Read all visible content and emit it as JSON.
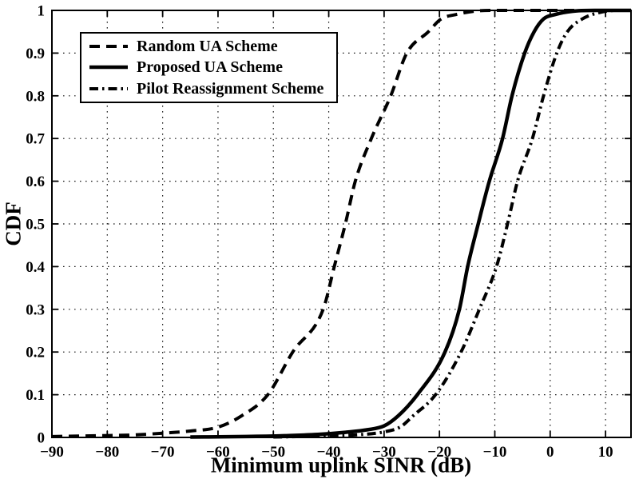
{
  "figure": {
    "background": "#ffffff",
    "ink_color": "#000000"
  },
  "chart_data": {
    "type": "line",
    "title": "",
    "xlabel": "Minimum uplink SINR (dB)",
    "ylabel": "CDF",
    "xlim": [
      -90,
      14.6
    ],
    "ylim": [
      0,
      1
    ],
    "grid": "dotted",
    "legend_position": "top-left",
    "xticks": {
      "values": [
        -90,
        -80,
        -70,
        -60,
        -50,
        -40,
        -30,
        -20,
        -10,
        0,
        10
      ],
      "labels": [
        "−90",
        "−80",
        "−70",
        "−60",
        "−50",
        "−40",
        "−30",
        "−20",
        "−10",
        "0",
        "10"
      ]
    },
    "yticks": {
      "values": [
        0,
        0.1,
        0.2,
        0.3,
        0.4,
        0.5,
        0.6,
        0.7,
        0.8,
        0.9,
        1
      ],
      "labels": [
        "0",
        "0.1",
        "0.2",
        "0.3",
        "0.4",
        "0.5",
        "0.6",
        "0.7",
        "0.8",
        "0.9",
        "1"
      ]
    },
    "series": [
      {
        "name": "Random UA Scheme",
        "line_style": "dashed",
        "color": "#000000",
        "points": [
          [
            -90,
            0.002
          ],
          [
            -82,
            0.004
          ],
          [
            -75,
            0.006
          ],
          [
            -70,
            0.01
          ],
          [
            -65,
            0.015
          ],
          [
            -60,
            0.024
          ],
          [
            -55.8,
            0.05
          ],
          [
            -51,
            0.1
          ],
          [
            -46.5,
            0.2
          ],
          [
            -41,
            0.3
          ],
          [
            -39,
            0.4
          ],
          [
            -37,
            0.5
          ],
          [
            -35.2,
            0.6
          ],
          [
            -32.3,
            0.7
          ],
          [
            -28.8,
            0.8
          ],
          [
            -25.9,
            0.9
          ],
          [
            -22,
            0.95
          ],
          [
            -19.7,
            0.98
          ],
          [
            -17.1,
            0.99
          ],
          [
            -13,
            0.999
          ],
          [
            -10,
            1.0
          ],
          [
            14.6,
            1.0
          ]
        ]
      },
      {
        "name": "Proposed UA Scheme",
        "line_style": "solid",
        "color": "#000000",
        "points": [
          [
            -65,
            0.001
          ],
          [
            -55,
            0.002
          ],
          [
            -48,
            0.004
          ],
          [
            -42,
            0.007
          ],
          [
            -37,
            0.012
          ],
          [
            -33,
            0.018
          ],
          [
            -30,
            0.027
          ],
          [
            -27.5,
            0.05
          ],
          [
            -24,
            0.1
          ],
          [
            -19,
            0.2
          ],
          [
            -16.4,
            0.3
          ],
          [
            -14.9,
            0.4
          ],
          [
            -13,
            0.5
          ],
          [
            -11,
            0.6
          ],
          [
            -8.6,
            0.7
          ],
          [
            -6.9,
            0.8
          ],
          [
            -4.6,
            0.9
          ],
          [
            -2.9,
            0.95
          ],
          [
            -1.2,
            0.98
          ],
          [
            0.8,
            0.99
          ],
          [
            4,
            0.998
          ],
          [
            8,
            1.0
          ],
          [
            14.6,
            1.0
          ]
        ]
      },
      {
        "name": "Pilot Reassignment Scheme",
        "line_style": "dash-dot",
        "color": "#000000",
        "points": [
          [
            -50,
            0.001
          ],
          [
            -45,
            0.002
          ],
          [
            -40,
            0.004
          ],
          [
            -35,
            0.006
          ],
          [
            -30,
            0.013
          ],
          [
            -27,
            0.025
          ],
          [
            -24.8,
            0.05
          ],
          [
            -20.7,
            0.1
          ],
          [
            -16.1,
            0.2
          ],
          [
            -12.8,
            0.3
          ],
          [
            -9.7,
            0.4
          ],
          [
            -7.7,
            0.5
          ],
          [
            -5.9,
            0.6
          ],
          [
            -3.2,
            0.7
          ],
          [
            -1.2,
            0.8
          ],
          [
            1.2,
            0.9
          ],
          [
            3.1,
            0.95
          ],
          [
            5.8,
            0.98
          ],
          [
            8.9,
            0.995
          ],
          [
            12,
            1.0
          ],
          [
            14.6,
            1.0
          ]
        ]
      }
    ]
  }
}
